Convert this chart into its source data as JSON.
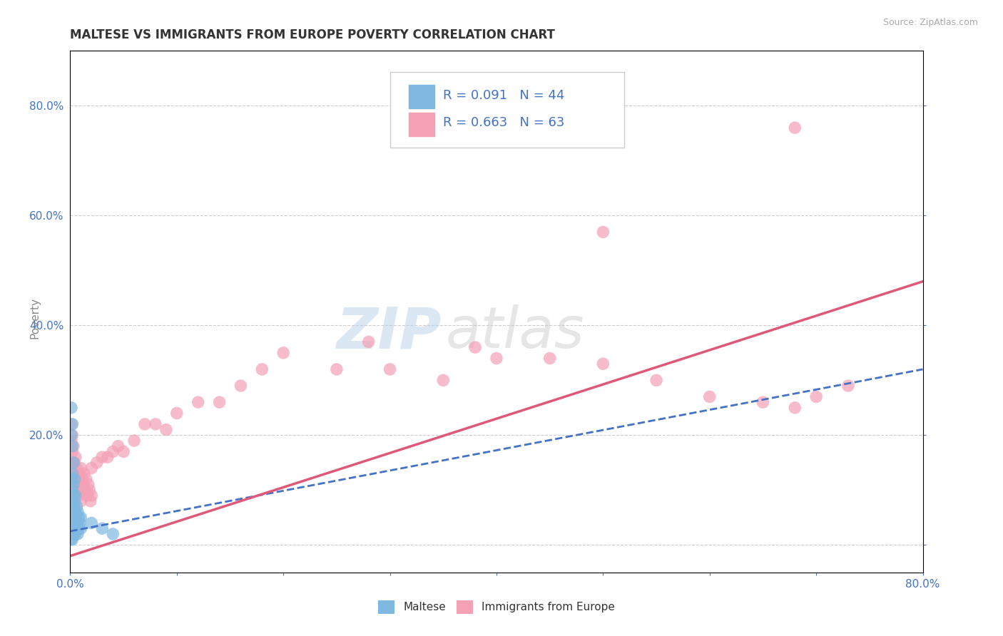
{
  "title": "MALTESE VS IMMIGRANTS FROM EUROPE POVERTY CORRELATION CHART",
  "source": "Source: ZipAtlas.com",
  "ylabel": "Poverty",
  "xlim": [
    0.0,
    0.8
  ],
  "ylim": [
    -0.05,
    0.9
  ],
  "xticks": [
    0.0,
    0.1,
    0.2,
    0.3,
    0.4,
    0.5,
    0.6,
    0.7,
    0.8
  ],
  "xticklabels": [
    "0.0%",
    "",
    "",
    "",
    "",
    "",
    "",
    "",
    "80.0%"
  ],
  "ytick_positions": [
    0.0,
    0.2,
    0.4,
    0.6,
    0.8
  ],
  "yticklabels": [
    "",
    "20.0%",
    "40.0%",
    "60.0%",
    "80.0%"
  ],
  "watermark_zip": "ZIP",
  "watermark_atlas": "atlas",
  "legend_r1": "R = 0.091",
  "legend_n1": "N = 44",
  "legend_r2": "R = 0.663",
  "legend_n2": "N = 63",
  "blue_color": "#7fb8e0",
  "pink_color": "#f4a0b5",
  "blue_line_color": "#4472c4",
  "pink_line_color": "#e05878",
  "blue_line": [
    [
      0.0,
      0.025
    ],
    [
      0.8,
      0.32
    ]
  ],
  "pink_line": [
    [
      0.0,
      -0.02
    ],
    [
      0.8,
      0.48
    ]
  ],
  "blue_scatter": [
    [
      0.001,
      0.05
    ],
    [
      0.002,
      0.04
    ],
    [
      0.003,
      0.06
    ],
    [
      0.001,
      0.08
    ],
    [
      0.002,
      0.1
    ],
    [
      0.003,
      0.09
    ],
    [
      0.001,
      0.12
    ],
    [
      0.002,
      0.13
    ],
    [
      0.001,
      0.07
    ],
    [
      0.003,
      0.03
    ],
    [
      0.004,
      0.05
    ],
    [
      0.005,
      0.04
    ],
    [
      0.002,
      0.06
    ],
    [
      0.003,
      0.07
    ],
    [
      0.001,
      0.03
    ],
    [
      0.002,
      0.02
    ],
    [
      0.004,
      0.08
    ],
    [
      0.005,
      0.09
    ],
    [
      0.006,
      0.07
    ],
    [
      0.007,
      0.06
    ],
    [
      0.008,
      0.05
    ],
    [
      0.003,
      0.11
    ],
    [
      0.004,
      0.12
    ],
    [
      0.005,
      0.06
    ],
    [
      0.006,
      0.04
    ],
    [
      0.001,
      0.01
    ],
    [
      0.002,
      0.01
    ],
    [
      0.003,
      0.02
    ],
    [
      0.004,
      0.03
    ],
    [
      0.005,
      0.02
    ],
    [
      0.006,
      0.03
    ],
    [
      0.007,
      0.02
    ],
    [
      0.008,
      0.03
    ],
    [
      0.009,
      0.04
    ],
    [
      0.01,
      0.05
    ],
    [
      0.001,
      0.2
    ],
    [
      0.002,
      0.22
    ],
    [
      0.001,
      0.25
    ],
    [
      0.002,
      0.18
    ],
    [
      0.003,
      0.15
    ],
    [
      0.03,
      0.03
    ],
    [
      0.04,
      0.02
    ],
    [
      0.02,
      0.04
    ],
    [
      0.01,
      0.03
    ]
  ],
  "pink_scatter": [
    [
      0.001,
      0.22
    ],
    [
      0.002,
      0.2
    ],
    [
      0.003,
      0.18
    ],
    [
      0.004,
      0.15
    ],
    [
      0.005,
      0.16
    ],
    [
      0.006,
      0.14
    ],
    [
      0.007,
      0.13
    ],
    [
      0.008,
      0.12
    ],
    [
      0.009,
      0.11
    ],
    [
      0.01,
      0.14
    ],
    [
      0.011,
      0.12
    ],
    [
      0.012,
      0.11
    ],
    [
      0.013,
      0.13
    ],
    [
      0.014,
      0.1
    ],
    [
      0.015,
      0.12
    ],
    [
      0.016,
      0.09
    ],
    [
      0.017,
      0.11
    ],
    [
      0.018,
      0.1
    ],
    [
      0.019,
      0.08
    ],
    [
      0.02,
      0.09
    ],
    [
      0.001,
      0.19
    ],
    [
      0.002,
      0.17
    ],
    [
      0.003,
      0.15
    ],
    [
      0.004,
      0.13
    ],
    [
      0.005,
      0.11
    ],
    [
      0.006,
      0.12
    ],
    [
      0.007,
      0.1
    ],
    [
      0.008,
      0.09
    ],
    [
      0.009,
      0.13
    ],
    [
      0.01,
      0.08
    ],
    [
      0.02,
      0.14
    ],
    [
      0.025,
      0.15
    ],
    [
      0.03,
      0.16
    ],
    [
      0.035,
      0.16
    ],
    [
      0.04,
      0.17
    ],
    [
      0.045,
      0.18
    ],
    [
      0.05,
      0.17
    ],
    [
      0.06,
      0.19
    ],
    [
      0.07,
      0.22
    ],
    [
      0.08,
      0.22
    ],
    [
      0.09,
      0.21
    ],
    [
      0.1,
      0.24
    ],
    [
      0.12,
      0.26
    ],
    [
      0.14,
      0.26
    ],
    [
      0.16,
      0.29
    ],
    [
      0.18,
      0.32
    ],
    [
      0.2,
      0.35
    ],
    [
      0.25,
      0.32
    ],
    [
      0.3,
      0.32
    ],
    [
      0.35,
      0.3
    ],
    [
      0.4,
      0.34
    ],
    [
      0.45,
      0.34
    ],
    [
      0.5,
      0.33
    ],
    [
      0.55,
      0.3
    ],
    [
      0.6,
      0.27
    ],
    [
      0.65,
      0.26
    ],
    [
      0.68,
      0.25
    ],
    [
      0.7,
      0.27
    ],
    [
      0.73,
      0.29
    ],
    [
      0.5,
      0.57
    ],
    [
      0.68,
      0.76
    ],
    [
      0.28,
      0.37
    ],
    [
      0.38,
      0.36
    ]
  ],
  "background_color": "#ffffff",
  "grid_color": "#cccccc",
  "title_color": "#333333",
  "axis_label_color": "#888888",
  "tick_color": "#4472c4",
  "source_color": "#aaaaaa"
}
